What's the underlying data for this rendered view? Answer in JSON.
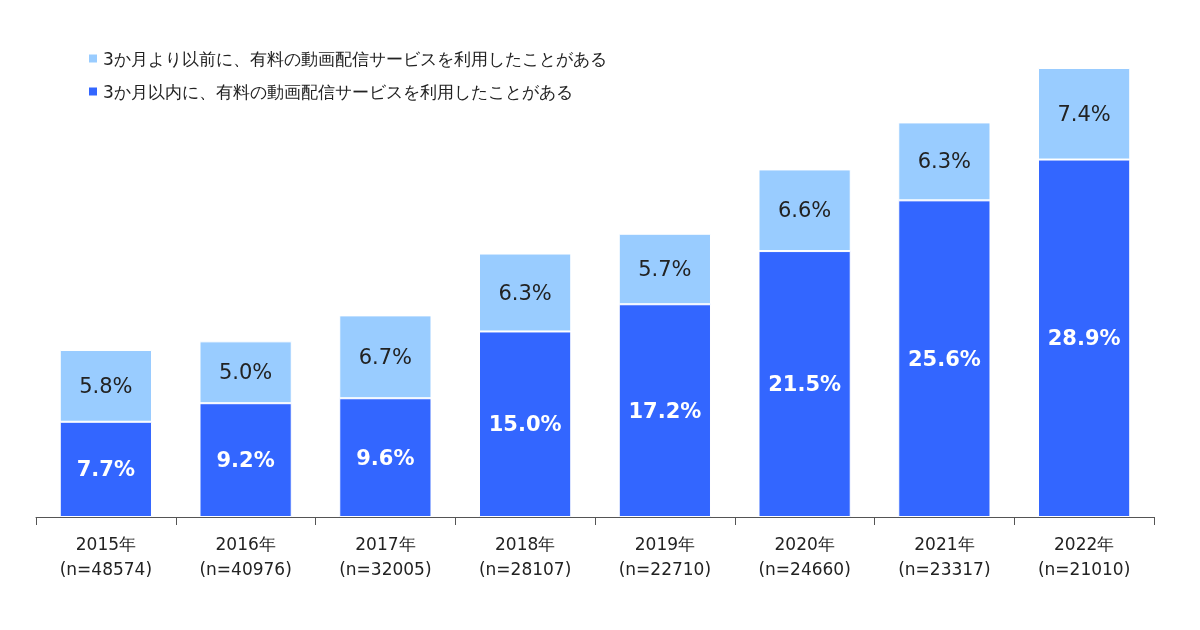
{
  "chart_data": {
    "type": "bar",
    "stacked": true,
    "legend": "top left",
    "categories": [
      "2015年\n(n=48574)",
      "2016年\n(n=40976)",
      "2017年\n(n=32005)",
      "2018年\n(n=28107)",
      "2019年\n(n=22710)",
      "2020年\n(n=24660)",
      "2021年\n(n=23317)",
      "2022年\n(n=21010)"
    ],
    "series": [
      {
        "name": "3か月以内に、有料の動画配信サービスを利用したことがある",
        "color": "#3366ff",
        "values": [
          7.7,
          9.2,
          9.6,
          15.0,
          17.2,
          21.5,
          25.6,
          28.9
        ],
        "value_labels": [
          "7.7%",
          "9.2%",
          "9.6%",
          "15.0%",
          "17.2%",
          "21.5%",
          "25.6%",
          "28.9%"
        ]
      },
      {
        "name": "3か月より以前に、有料の動画配信サービスを利用したことがある",
        "color": "#99ccff",
        "values": [
          5.8,
          5.0,
          6.7,
          6.3,
          5.7,
          6.6,
          6.3,
          7.4
        ],
        "value_labels": [
          "5.8%",
          "5.0%",
          "6.7%",
          "6.3%",
          "5.7%",
          "6.6%",
          "6.3%",
          "7.4%"
        ]
      }
    ]
  }
}
